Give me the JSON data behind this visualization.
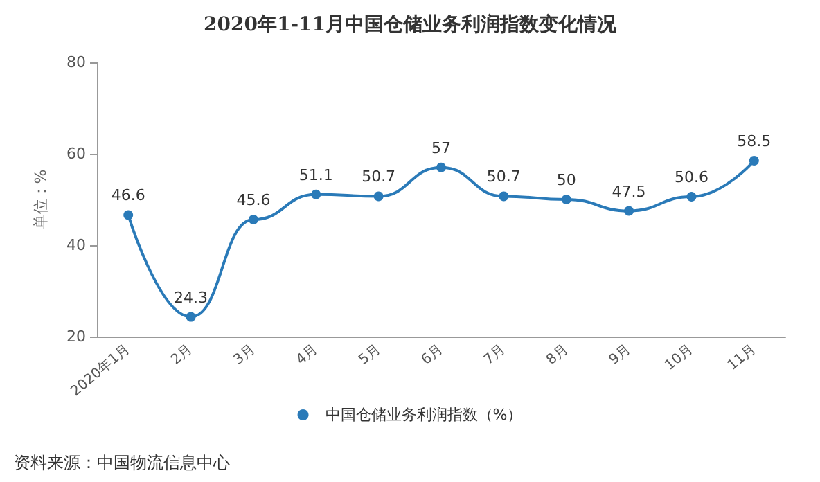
{
  "chart_data": {
    "type": "line",
    "title": "2020年1-11月中国仓储业务利润指数变化情况",
    "ylabel": "单位：%",
    "categories": [
      "2020年1月",
      "2月",
      "3月",
      "4月",
      "5月",
      "6月",
      "7月",
      "8月",
      "9月",
      "10月",
      "11月"
    ],
    "series": [
      {
        "name": "中国仓储业务利润指数（%）",
        "color": "#2a7ab8",
        "values": [
          46.6,
          24.3,
          45.6,
          51.1,
          50.7,
          57,
          50.7,
          50,
          47.5,
          50.6,
          58.5
        ]
      }
    ],
    "ylim": [
      20,
      80
    ],
    "yticks": [
      20,
      40,
      60,
      80
    ],
    "grid": false,
    "legend": "bottom",
    "marker": "circle",
    "line_style": "solid",
    "data_labels": true,
    "annotations": [
      "资料来源：中国物流信息中心"
    ]
  }
}
